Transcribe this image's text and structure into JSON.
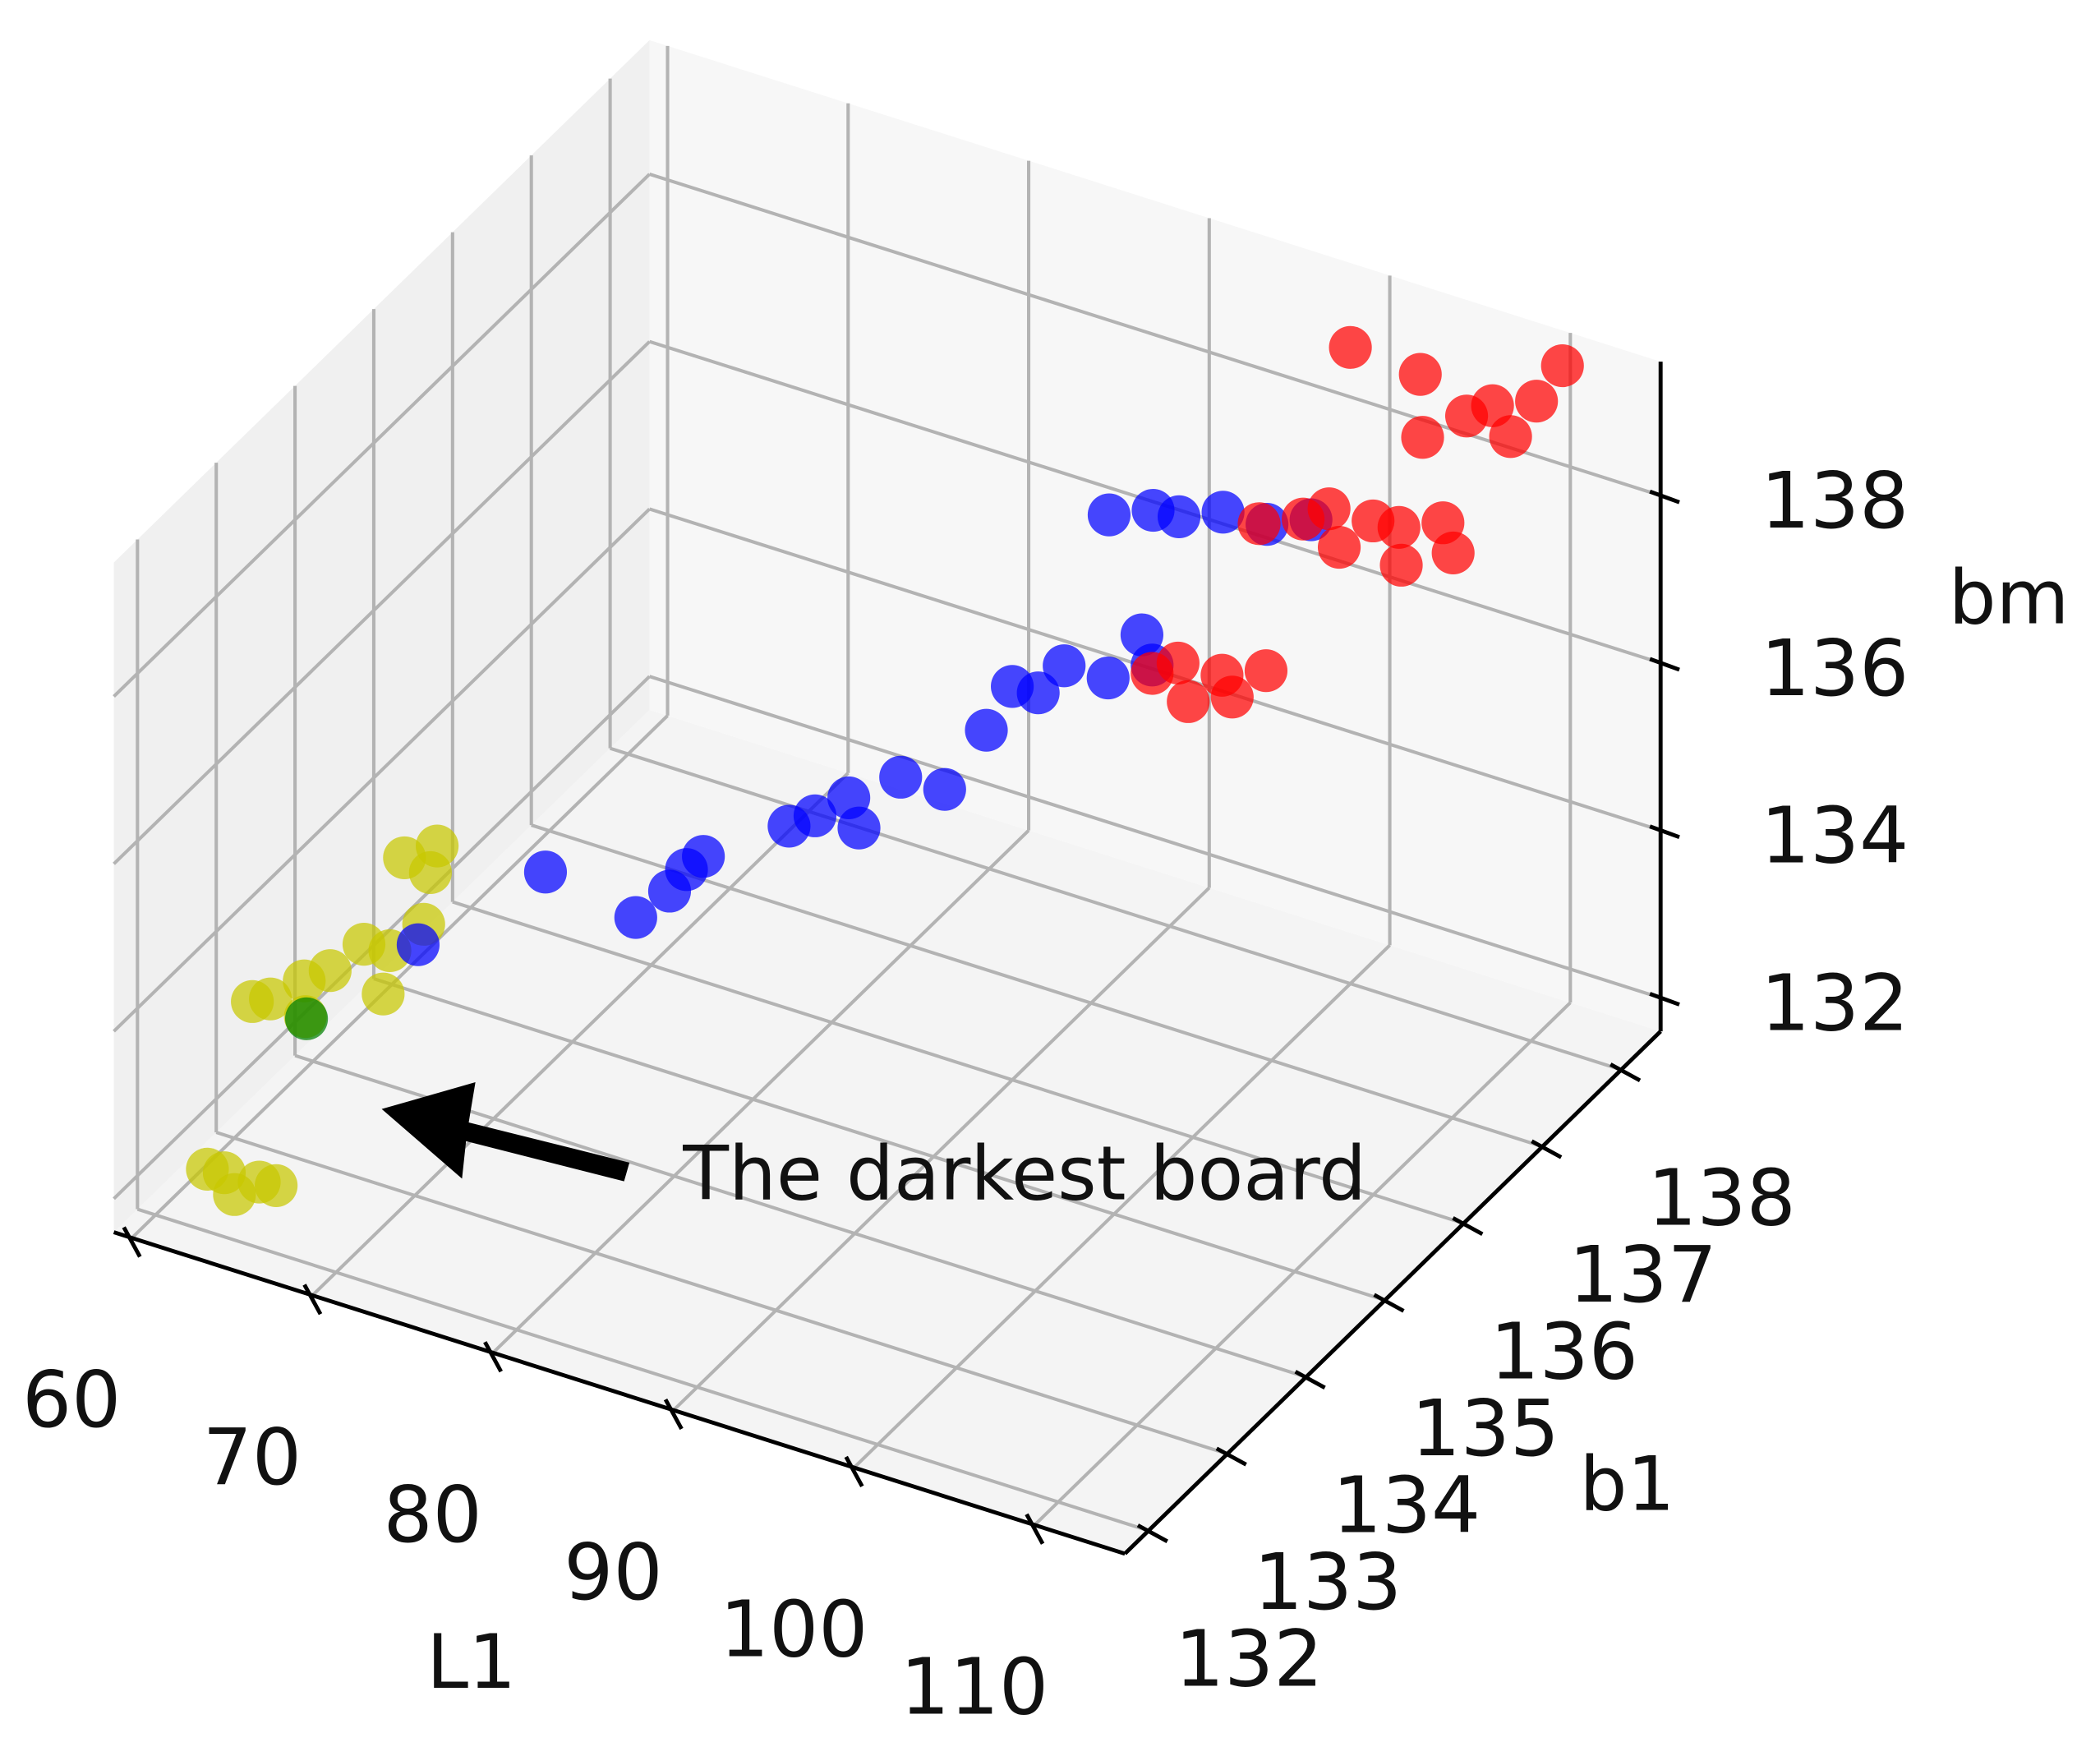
{
  "chart_data": {
    "type": "scatter3d",
    "xlabel": "L1",
    "ylabel": "b1",
    "zlabel": "bm",
    "annotation": "The darkest board",
    "xlim": [
      59,
      115
    ],
    "ylim": [
      131.7,
      138.5
    ],
    "zlim": [
      131.6,
      139.6
    ],
    "xticks": [
      60,
      70,
      80,
      90,
      100,
      110
    ],
    "yticks": [
      132,
      133,
      134,
      135,
      136,
      137,
      138
    ],
    "zticks": [
      132,
      134,
      136,
      138
    ],
    "grid": true,
    "series": [
      {
        "color": "#c8c800",
        "x": [
          62,
          62.5,
          63.5,
          64,
          64.5,
          61,
          62,
          63,
          63.5,
          64,
          65,
          66,
          66.5,
          67,
          65.5,
          66,
          66.5
        ],
        "y": [
          132.2,
          132.3,
          132.2,
          132.4,
          132.5,
          133,
          133,
          133.2,
          133.1,
          133.3,
          133.5,
          133.6,
          133.4,
          133.8,
          133.9,
          134.2,
          134.0
        ],
        "z": [
          132.1,
          132.0,
          131.9,
          131.9,
          131.8,
          133.3,
          133.4,
          133.5,
          133.2,
          133.6,
          133.8,
          133.7,
          133.4,
          133.9,
          134.5,
          134.4,
          134.3
        ]
      },
      {
        "color": "#008000",
        "x": [
          64
        ],
        "y": [
          133
        ],
        "z": [
          133.3
        ]
      },
      {
        "color": "#0000ff",
        "x": [
          68,
          72,
          77,
          78,
          78.5,
          79,
          82,
          83,
          84,
          85,
          86,
          88,
          89,
          90,
          91,
          92,
          94,
          95,
          96,
          91,
          93,
          94,
          96,
          98,
          100
        ],
        "y": [
          133.5,
          134.2,
          134.2,
          134.4,
          134.5,
          134.6,
          135,
          135.1,
          135.3,
          135.2,
          135.5,
          135.6,
          135.9,
          136,
          136.1,
          136.2,
          136.3,
          136.5,
          136.4,
          137,
          137.1,
          137.2,
          137.3,
          137.4,
          137.5
        ],
        "z": [
          134.0,
          134.5,
          134.3,
          134.5,
          134.7,
          134.8,
          135,
          135.1,
          135.2,
          135,
          135.4,
          135.3,
          135.8,
          136.3,
          136.2,
          136.5,
          136.4,
          136.8,
          136.6,
          137.5,
          137.6,
          137.5,
          137.6,
          137.5,
          137.6
        ]
      },
      {
        "color": "#ff0000",
        "x": [
          96,
          97,
          98,
          99,
          100,
          101,
          98,
          100,
          101,
          102,
          103,
          104,
          105,
          106,
          107,
          104,
          106,
          107,
          108,
          109,
          100,
          110,
          103
        ],
        "y": [
          136.4,
          136.5,
          136.4,
          136.6,
          136.5,
          136.7,
          137.3,
          137.4,
          137.5,
          137.4,
          137.6,
          137.7,
          137.5,
          137.8,
          137.7,
          138,
          138.1,
          138.2,
          138.2,
          138.3,
          138,
          138.4,
          138.2
        ],
        "z": [
          136.5,
          136.6,
          136.3,
          136.5,
          136.4,
          136.6,
          137.6,
          137.7,
          137.8,
          137.5,
          137.7,
          137.6,
          137.4,
          137.7,
          137.5,
          138.4,
          138.7,
          138.8,
          138.5,
          138.9,
          139.2,
          139.3,
          138.9
        ]
      }
    ]
  }
}
